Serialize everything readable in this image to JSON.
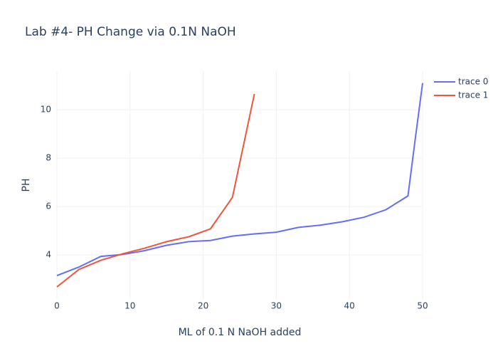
{
  "chart_data": {
    "type": "line",
    "title": "Lab #4- PH Change via 0.1N NaOH",
    "x_label": "ML of 0.1 N NaOH added",
    "y_label": "PH",
    "series": [
      {
        "name": "trace 0",
        "color": "#636efa",
        "x": [
          0,
          3,
          6,
          9,
          12,
          15,
          18,
          21,
          24,
          27,
          30,
          33,
          36,
          39,
          42,
          45,
          48,
          49,
          50
        ],
        "values": [
          3.15,
          3.5,
          3.94,
          4.02,
          4.18,
          4.4,
          4.55,
          4.6,
          4.78,
          4.87,
          4.94,
          5.14,
          5.23,
          5.37,
          5.56,
          5.87,
          6.44,
          8.8,
          11.1
        ]
      },
      {
        "name": "trace 1",
        "color": "#ef553b",
        "x": [
          0,
          3,
          6,
          9,
          12,
          15,
          18,
          21,
          24,
          27
        ],
        "values": [
          2.68,
          3.4,
          3.78,
          4.05,
          4.28,
          4.55,
          4.75,
          5.08,
          6.38,
          10.65
        ]
      }
    ],
    "xlim": [
      0,
      50
    ],
    "xticks": [
      0,
      10,
      20,
      30,
      40,
      50
    ],
    "ylim": [
      2.18,
      11.59
    ],
    "yticks": [
      4,
      6,
      8,
      10
    ],
    "grid": true,
    "legend": "top-right"
  }
}
